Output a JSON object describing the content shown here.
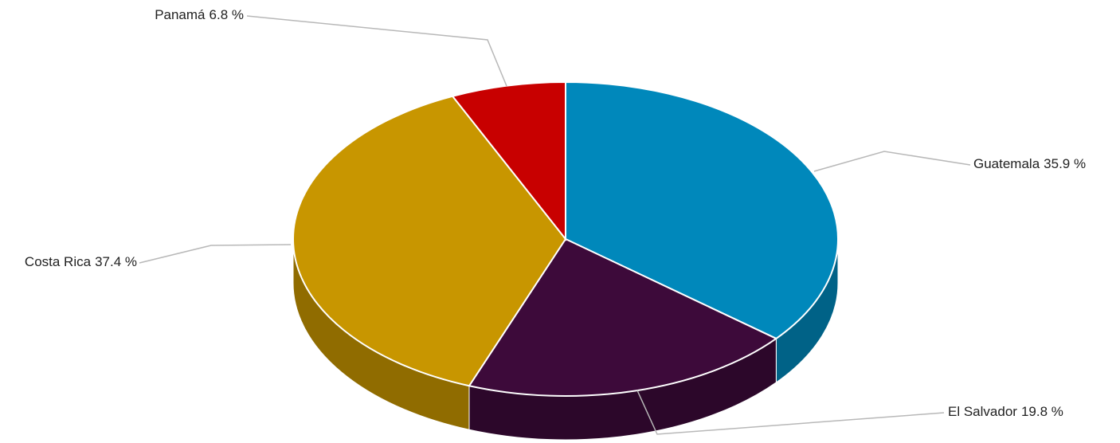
{
  "chart_data": {
    "type": "pie",
    "categories": [
      "Guatemala",
      "El Salvador",
      "Costa Rica",
      "Panamá"
    ],
    "values": [
      35.9,
      19.8,
      37.4,
      6.8
    ],
    "value_labels": [
      "35.9 %",
      "19.8 %",
      "37.4 %",
      "6.8 %"
    ],
    "colors": [
      "#0088bb",
      "#3d0a3a",
      "#c89600",
      "#c80000"
    ]
  }
}
